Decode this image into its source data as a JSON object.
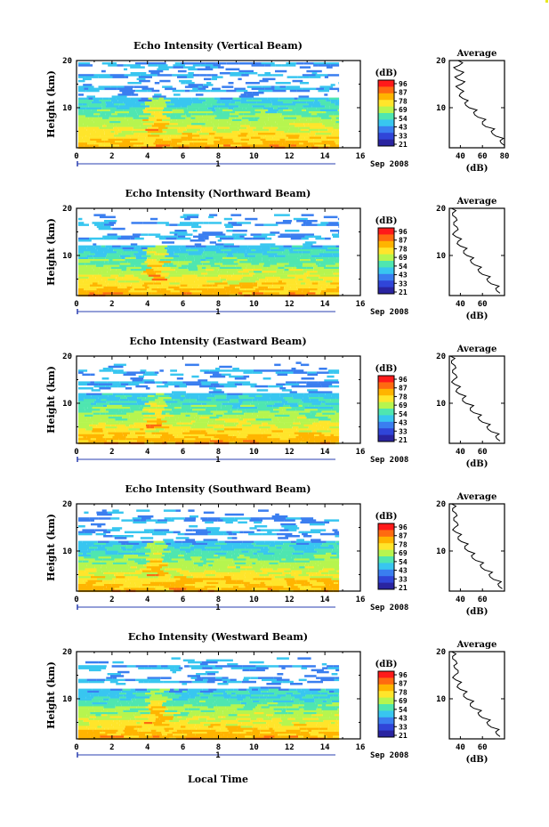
{
  "figure": {
    "xlabel": "Local Time",
    "date_label": "Sep 2008",
    "day_marker": "1"
  },
  "colorbar": {
    "unit": "(dB)",
    "ticks": [
      "96",
      "87",
      "78",
      "69",
      "54",
      "43",
      "33",
      "21"
    ],
    "colors": [
      "#ff1a1a",
      "#ff6a10",
      "#ffb400",
      "#ffe52b",
      "#b6f54f",
      "#4fe6b0",
      "#38c6f0",
      "#3a7ef0",
      "#3045d8",
      "#2a24a0"
    ]
  },
  "chart_data": [
    {
      "type": "heatmap",
      "title": "Echo Intensity (Vertical Beam)",
      "ylabel": "Height (km)",
      "xlim": [
        0,
        16
      ],
      "ylim": [
        1.5,
        20
      ],
      "xticks": [
        "0",
        "2",
        "4",
        "6",
        "8",
        "10",
        "12",
        "14",
        "16"
      ],
      "xtick_values": [
        0,
        2,
        4,
        6,
        8,
        10,
        12,
        14,
        16
      ],
      "yticks": [
        "10",
        "20"
      ],
      "ytick_values": [
        10,
        20
      ],
      "data_x_range": [
        0,
        14.8
      ],
      "profile": {
        "title": "Average",
        "xlabel": "(dB)",
        "xlim": [
          30,
          80
        ],
        "xticks": [
          "40",
          "60",
          "80"
        ],
        "xtick_values": [
          40,
          60,
          80
        ],
        "yticks": [
          "10",
          "20"
        ],
        "ytick_values": [
          10,
          20
        ],
        "height_km": [
          2,
          3,
          4,
          5,
          6,
          7,
          8,
          9,
          10,
          11,
          12,
          13,
          14,
          15,
          16,
          17,
          18,
          19,
          20
        ],
        "value_db": [
          80,
          76,
          72,
          68,
          63,
          60,
          56,
          52,
          48,
          44,
          42,
          40,
          39,
          41,
          38,
          40,
          37,
          39,
          38
        ]
      }
    },
    {
      "type": "heatmap",
      "title": "Echo Intensity (Northward Beam)",
      "ylabel": "Height (km)",
      "xlim": [
        0,
        16
      ],
      "ylim": [
        1.5,
        20
      ],
      "xticks": [
        "0",
        "2",
        "4",
        "6",
        "8",
        "10",
        "12",
        "14",
        "16"
      ],
      "xtick_values": [
        0,
        2,
        4,
        6,
        8,
        10,
        12,
        14,
        16
      ],
      "yticks": [
        "10",
        "20"
      ],
      "ytick_values": [
        10,
        20
      ],
      "data_x_range": [
        0,
        14.8
      ],
      "profile": {
        "title": "Average",
        "xlabel": "(dB)",
        "xlim": [
          30,
          80
        ],
        "xticks": [
          "40",
          "60"
        ],
        "xtick_values": [
          40,
          60
        ],
        "yticks": [
          "10",
          "20"
        ],
        "ytick_values": [
          10,
          20
        ],
        "height_km": [
          2,
          3,
          4,
          5,
          6,
          7,
          8,
          9,
          10,
          11,
          12,
          13,
          14,
          15,
          16,
          17,
          18,
          19,
          20
        ],
        "value_db": [
          76,
          72,
          68,
          64,
          60,
          56,
          53,
          49,
          46,
          43,
          40,
          38,
          36,
          35,
          37,
          34,
          36,
          33,
          32
        ]
      }
    },
    {
      "type": "heatmap",
      "title": "Echo Intensity (Eastward Beam)",
      "ylabel": "Height (km)",
      "xlim": [
        0,
        16
      ],
      "ylim": [
        1.5,
        20
      ],
      "xticks": [
        "0",
        "2",
        "4",
        "6",
        "8",
        "10",
        "12",
        "14",
        "16"
      ],
      "xtick_values": [
        0,
        2,
        4,
        6,
        8,
        10,
        12,
        14,
        16
      ],
      "yticks": [
        "10",
        "20"
      ],
      "ytick_values": [
        10,
        20
      ],
      "data_x_range": [
        0,
        14.8
      ],
      "profile": {
        "title": "Average",
        "xlabel": "(dB)",
        "xlim": [
          30,
          80
        ],
        "xticks": [
          "40",
          "60"
        ],
        "xtick_values": [
          40,
          60
        ],
        "yticks": [
          "10",
          "20"
        ],
        "ytick_values": [
          10,
          20
        ],
        "height_km": [
          2,
          3,
          4,
          5,
          6,
          7,
          8,
          9,
          10,
          11,
          12,
          13,
          14,
          15,
          16,
          17,
          18,
          19,
          20
        ],
        "value_db": [
          76,
          72,
          68,
          64,
          60,
          56,
          52,
          49,
          45,
          42,
          39,
          37,
          35,
          34,
          36,
          33,
          35,
          32,
          31
        ]
      }
    },
    {
      "type": "heatmap",
      "title": "Echo Intensity (Southward Beam)",
      "ylabel": "Height (km)",
      "xlim": [
        0,
        16
      ],
      "ylim": [
        1.5,
        20
      ],
      "xticks": [
        "0",
        "2",
        "4",
        "6",
        "8",
        "10",
        "12",
        "14",
        "16"
      ],
      "xtick_values": [
        0,
        2,
        4,
        6,
        8,
        10,
        12,
        14,
        16
      ],
      "yticks": [
        "10",
        "20"
      ],
      "ytick_values": [
        10,
        20
      ],
      "data_x_range": [
        0,
        14.8
      ],
      "profile": {
        "title": "Average",
        "xlabel": "(dB)",
        "xlim": [
          30,
          80
        ],
        "xticks": [
          "40",
          "60"
        ],
        "xtick_values": [
          40,
          60
        ],
        "yticks": [
          "10",
          "20"
        ],
        "ytick_values": [
          10,
          20
        ],
        "height_km": [
          2,
          3,
          4,
          5,
          6,
          7,
          8,
          9,
          10,
          11,
          12,
          13,
          14,
          15,
          16,
          17,
          18,
          19,
          20
        ],
        "value_db": [
          78,
          74,
          70,
          66,
          62,
          58,
          54,
          50,
          47,
          44,
          41,
          38,
          36,
          35,
          37,
          34,
          36,
          33,
          32
        ]
      }
    },
    {
      "type": "heatmap",
      "title": "Echo Intensity (Westward Beam)",
      "ylabel": "Height (km)",
      "xlim": [
        0,
        16
      ],
      "ylim": [
        1.5,
        20
      ],
      "xticks": [
        "0",
        "2",
        "4",
        "6",
        "8",
        "10",
        "12",
        "14",
        "16"
      ],
      "xtick_values": [
        0,
        2,
        4,
        6,
        8,
        10,
        12,
        14,
        16
      ],
      "yticks": [
        "10",
        "20"
      ],
      "ytick_values": [
        10,
        20
      ],
      "data_x_range": [
        0,
        14.8
      ],
      "profile": {
        "title": "Average",
        "xlabel": "(dB)",
        "xlim": [
          30,
          80
        ],
        "xticks": [
          "40",
          "60"
        ],
        "xtick_values": [
          40,
          60
        ],
        "yticks": [
          "10",
          "20"
        ],
        "ytick_values": [
          10,
          20
        ],
        "height_km": [
          2,
          3,
          4,
          5,
          6,
          7,
          8,
          9,
          10,
          11,
          12,
          13,
          14,
          15,
          16,
          17,
          18,
          19,
          20
        ],
        "value_db": [
          76,
          72,
          68,
          64,
          60,
          56,
          52,
          49,
          46,
          43,
          40,
          38,
          36,
          35,
          38,
          34,
          36,
          33,
          32
        ]
      }
    }
  ]
}
